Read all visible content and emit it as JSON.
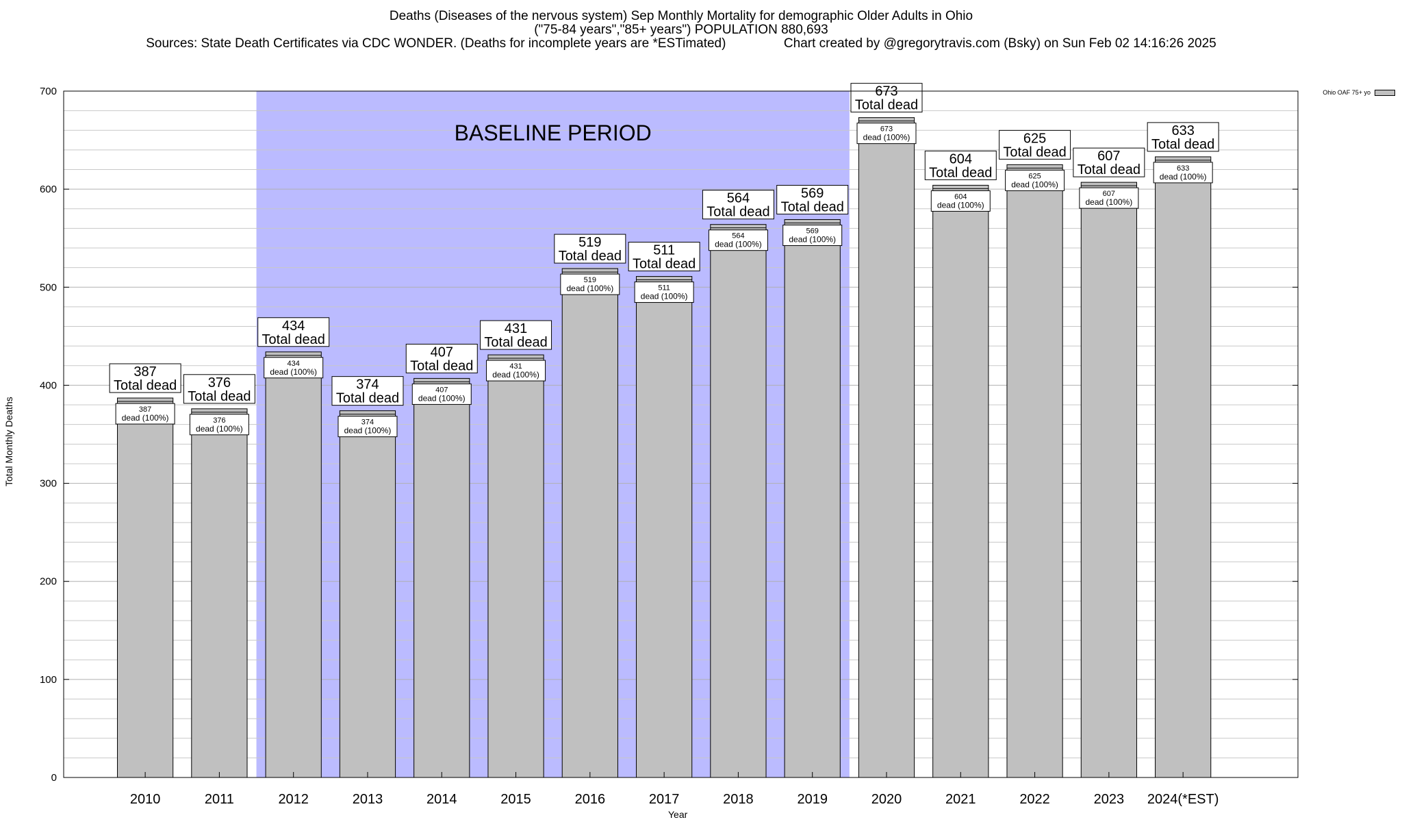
{
  "title": {
    "line1": "Deaths (Diseases of the nervous system) Sep Monthly Mortality for demographic Older Adults in Ohio",
    "line2": "(\"75-84 years\",\"85+ years\") POPULATION 880,693",
    "line3": "Sources: State Death Certificates via CDC WONDER. (Deaths for incomplete years are *ESTimated)                Chart created by @gregorytravis.com (Bsky) on Sun Feb 02 14:16:26 2025"
  },
  "legend": {
    "label": "Ohio OAF 75+ yo"
  },
  "chart_data": {
    "type": "bar",
    "title": "Deaths (Diseases of the nervous system) Sep Monthly Mortality for demographic Older Adults in Ohio",
    "xlabel": "Year",
    "ylabel": "Total Monthly Deaths",
    "ylim": [
      0,
      700
    ],
    "yticks": [
      0,
      100,
      200,
      300,
      400,
      500,
      600,
      700
    ],
    "grid": true,
    "legend_position": "top-right",
    "categories": [
      "2010",
      "2011",
      "2012",
      "2013",
      "2014",
      "2015",
      "2016",
      "2017",
      "2018",
      "2019",
      "2020",
      "2021",
      "2022",
      "2023",
      "2024(*EST)"
    ],
    "series": [
      {
        "name": "Ohio OAF 75+ yo",
        "values": [
          387,
          376,
          434,
          374,
          407,
          431,
          519,
          511,
          564,
          569,
          673,
          604,
          625,
          607,
          633
        ]
      }
    ],
    "top_label_suffix": "Total dead",
    "inner_label_suffix": "dead (100%)",
    "baseline_period": {
      "label": "BASELINE PERIOD",
      "start": "2012",
      "end": "2019"
    },
    "colors": {
      "bar": "#c0c0c0",
      "baseline": "#bbbbff"
    }
  }
}
